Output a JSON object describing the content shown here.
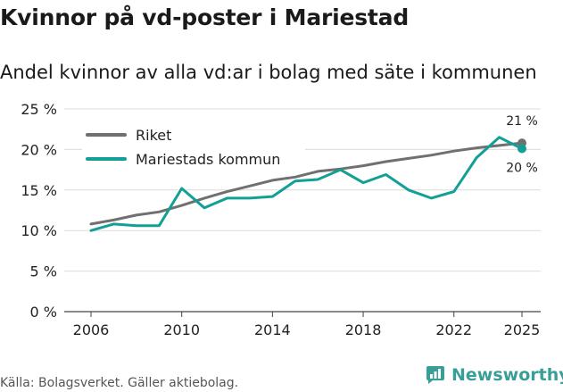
{
  "title": "Kvinnor på vd-poster i Mariestad",
  "subtitle": "Andel kvinnor av alla vd:ar i bolag med säte i kommunen",
  "source": "Källa: Bolagsverket. Gäller aktiebolag.",
  "brand": "Newsworthy",
  "colors": {
    "riket": "#707070",
    "kommun": "#12a096",
    "grid": "#dcdcdc",
    "brand": "#3a9e98"
  },
  "chart_data": {
    "type": "line",
    "x": [
      2006,
      2007,
      2008,
      2009,
      2010,
      2011,
      2012,
      2013,
      2014,
      2015,
      2016,
      2017,
      2018,
      2019,
      2020,
      2021,
      2022,
      2023,
      2024,
      2025
    ],
    "series": [
      {
        "name": "Riket",
        "values": [
          10.8,
          11.3,
          11.9,
          12.3,
          13.1,
          14.0,
          14.8,
          15.5,
          16.2,
          16.6,
          17.3,
          17.6,
          18.0,
          18.5,
          18.9,
          19.3,
          19.8,
          20.2,
          20.5,
          20.8
        ]
      },
      {
        "name": "Mariestads kommun",
        "values": [
          10.0,
          10.8,
          10.6,
          10.6,
          15.2,
          12.8,
          14.0,
          14.0,
          14.2,
          16.1,
          16.3,
          17.5,
          15.9,
          16.9,
          15.0,
          14.0,
          14.8,
          19.0,
          21.5,
          20.1
        ]
      }
    ],
    "end_labels": [
      "21 %",
      "20 %"
    ],
    "yticks": [
      0,
      5,
      10,
      15,
      20,
      25
    ],
    "ytick_labels": [
      "0 %",
      "5 %",
      "10 %",
      "15 %",
      "20 %",
      "25 %"
    ],
    "xticks": [
      2006,
      2010,
      2014,
      2018,
      2022,
      2025
    ],
    "xtick_labels": [
      "2006",
      "2010",
      "2014",
      "2018",
      "2022",
      "2025"
    ],
    "ylim": [
      0,
      25
    ],
    "xlim": [
      2006,
      2025
    ],
    "legend": "top-left"
  }
}
